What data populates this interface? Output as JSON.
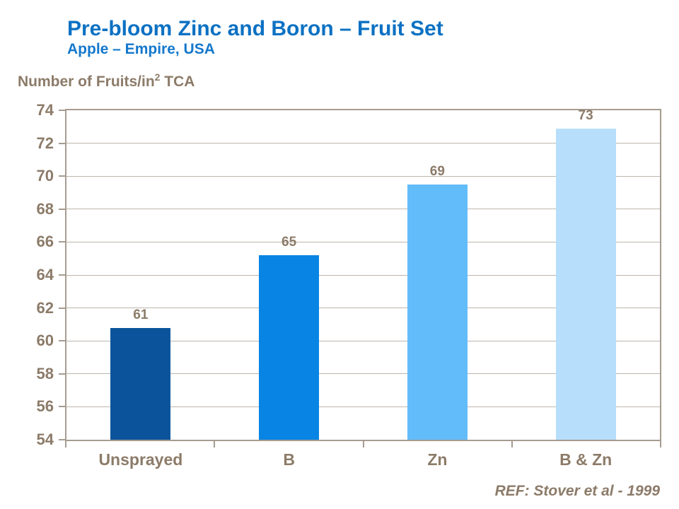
{
  "header": {
    "title": "Pre-bloom Zinc and Boron – Fruit Set",
    "subtitle": "Apple – Empire, USA"
  },
  "axis_title": {
    "main": "Number of Fruits/in",
    "sup": "2",
    "tail": " TCA"
  },
  "footer": {
    "ref": "REF: Stover et al - 1999"
  },
  "colors": {
    "title_blue": "#0C71C3",
    "subtitle_blue": "#1478CC",
    "text_taupe": "#8C7B69",
    "axis_border": "#A69C90",
    "gridline": "#BDB5AB",
    "bar_colors": [
      "#0B549B",
      "#0885E4",
      "#63BCFA",
      "#B7DEFB"
    ]
  },
  "chart_data": {
    "type": "bar",
    "title": "Pre-bloom Zinc and Boron – Fruit Set",
    "subtitle": "Apple – Empire, USA",
    "ylabel": "Number of Fruits/in² TCA",
    "xlabel": "",
    "categories": [
      "Unsprayed",
      "B",
      "Zn",
      "B & Zn"
    ],
    "values": [
      61,
      65,
      69,
      73
    ],
    "labels": [
      "61",
      "65",
      "69",
      "73"
    ],
    "drawn_values": [
      60.8,
      65.2,
      69.5,
      72.9
    ],
    "ylim": [
      54,
      74
    ],
    "ytick_step": 2,
    "grid": true,
    "legend": false,
    "annotation": "REF: Stover et al - 1999"
  }
}
